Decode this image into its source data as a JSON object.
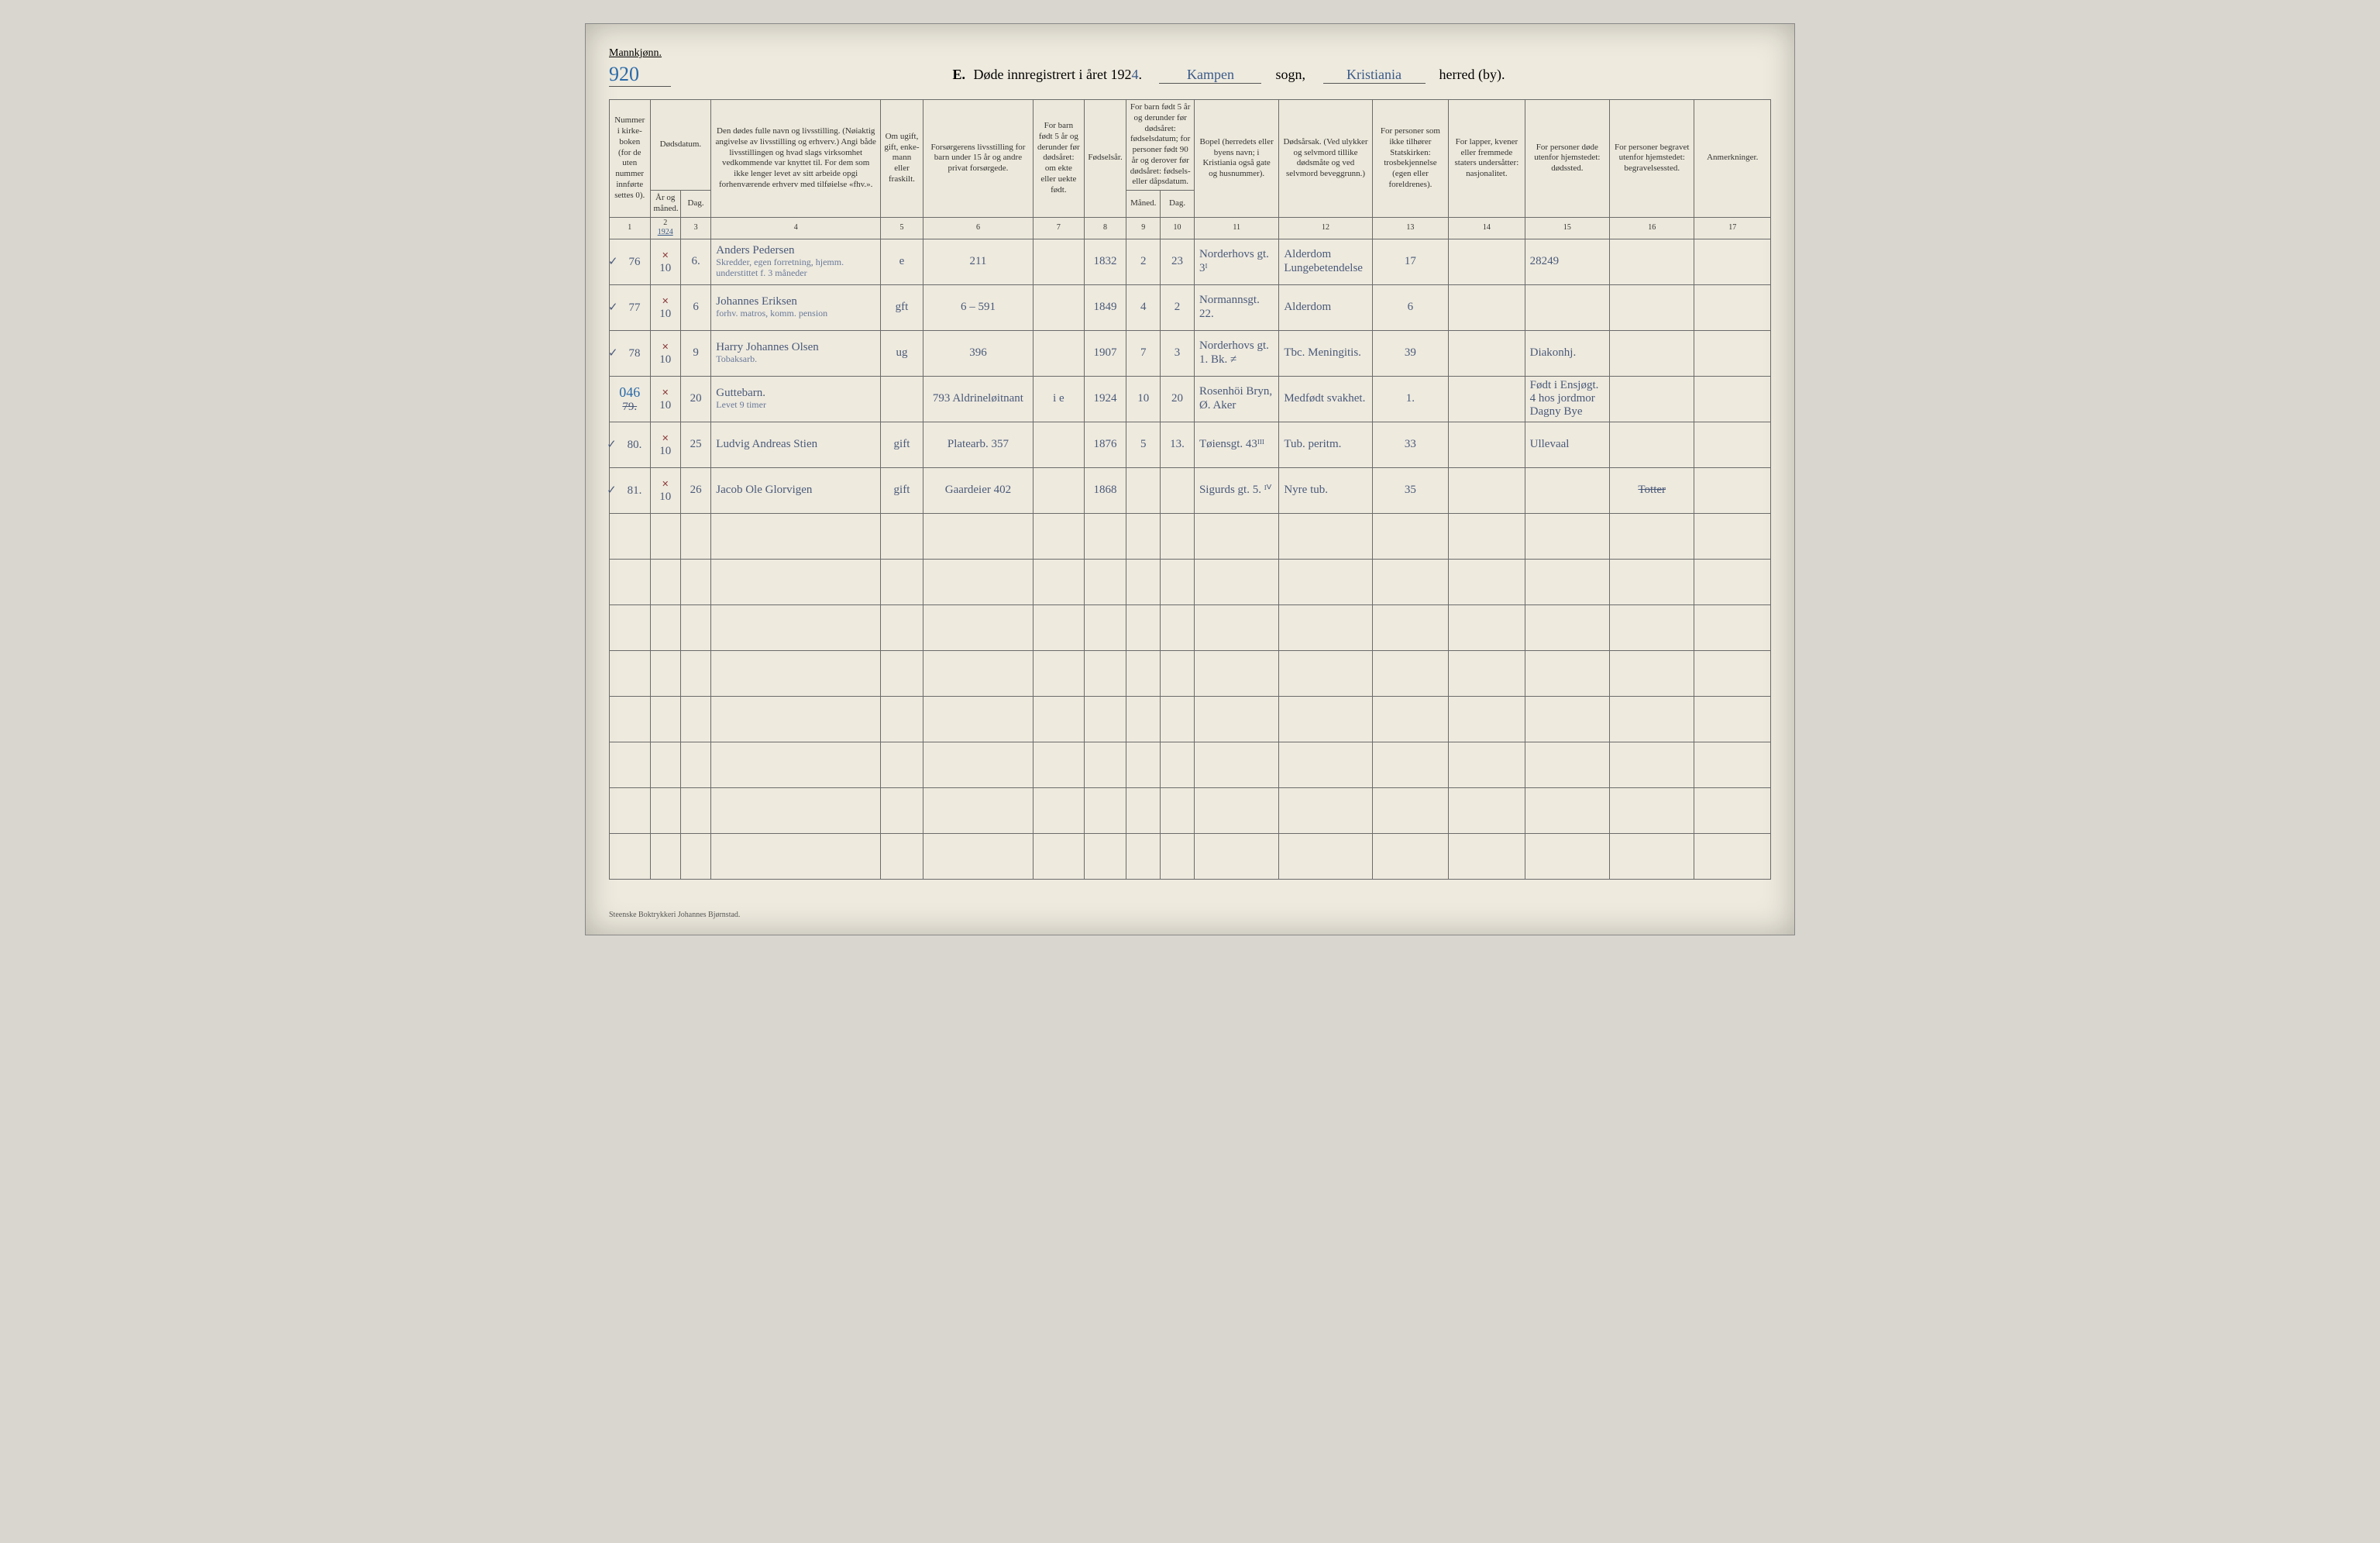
{
  "header": {
    "gender": "Mannkjønn.",
    "page_number": "920",
    "title_letter": "E.",
    "title_text": "Døde innregistrert i året 192",
    "year_suffix": "4",
    "year_sep": ".",
    "parish_label": "sogn,",
    "parish": "Kampen",
    "district_label": "herred (by).",
    "district": "Kristiania"
  },
  "columns": {
    "1": "Nummer i kirke­boken (for de uten nummer innførte settes 0).",
    "2a": "Dødsdatum.",
    "2_sub1": "År og måned.",
    "2_sub2": "Dag.",
    "4": "Den dødes fulle navn og livsstilling. (Nøiaktig angivelse av livsstilling og erhverv.) Angi både livsstillingen og hvad slags virksomhet vedkommende var knyttet til. For dem som ikke lenger levet av sitt arbeide opgi forhenværende erhverv med tilføielse «fhv.».",
    "5": "Om ugift, gift, enke­mann eller fraskilt.",
    "6": "Forsørgerens livsstilling for barn under 15 år og andre privat forsørgede.",
    "7": "For barn født 5 år og derunder før døds­året: om ekte eller uekte født.",
    "8": "Fødsels­år.",
    "910": "For barn født 5 år og der­under før dødsåret: fødselsdatum; for personer født 90 år og derover før dødsåret: fødsels- eller dåpsdatum.",
    "9_sub": "Måned.",
    "10_sub": "Dag.",
    "11": "Bopel (herredets eller byens navn; i Kristiania også gate og husnummer).",
    "12": "Dødsårsak. (Ved ulykker og selv­mord tillike dødsmåte og ved selvmord beveggrunn.)",
    "13": "For personer som ikke tilhører Statskirken: trosbekjennelse (egen eller foreldrenes).",
    "14": "For lapper, kvener eller fremmede staters undersåtter: nasjonalitet.",
    "15": "For personer døde utenfor hjemstedet: dødssted.",
    "16": "For personer begravet utenfor hjemstedet: begravelsessted.",
    "17": "Anmerkninger."
  },
  "colnums": [
    "1",
    "2",
    "3",
    "4",
    "5",
    "6",
    "7",
    "8",
    "9",
    "10",
    "11",
    "12",
    "13",
    "14",
    "15",
    "16",
    "17"
  ],
  "year_in_col2": "1924",
  "rows": [
    {
      "tick": "✓",
      "num": "76",
      "aar_mnd": "10",
      "dag": "6.",
      "name": "Anders Pedersen",
      "name_sub": "Skredder, egen forretning, hjemm. understittet f. 3 måneder",
      "marital": "e",
      "provider": "211",
      "ekte": "",
      "birth_year": "1832",
      "b_month": "2",
      "b_day": "23",
      "residence": "Norderhovs gt. 3ᴵ",
      "cause": "Alderdom Lungebetendelse",
      "col13": "17",
      "col14": "",
      "col15": "28249",
      "col16": "",
      "col17": ""
    },
    {
      "tick": "✓",
      "num": "77",
      "aar_mnd": "10",
      "dag": "6",
      "name": "Johannes Eriksen",
      "name_sub": "forhv. matros, komm. pension",
      "marital": "gft",
      "provider": "6 – 591",
      "ekte": "",
      "birth_year": "1849",
      "b_month": "4",
      "b_day": "2",
      "residence": "Normanns­gt. 22.",
      "cause": "Alderdom",
      "col13": "6",
      "col14": "",
      "col15": "",
      "col16": "",
      "col17": ""
    },
    {
      "tick": "✓",
      "num": "78",
      "aar_mnd": "10",
      "dag": "9",
      "name": "Harry Johannes Olsen",
      "name_sub": "Tobaksarb.",
      "marital": "ug",
      "provider": "396",
      "ekte": "",
      "birth_year": "1907",
      "b_month": "7",
      "b_day": "3",
      "residence": "Norderhovs gt. 1. Bk. ≠",
      "cause": "Tbc. Meningitis.",
      "col13": "39",
      "col14": "",
      "col15": "Diakonhj.",
      "col16": "",
      "col17": ""
    },
    {
      "tick": "",
      "num_strike": "79.",
      "num_over": "046",
      "aar_mnd": "10",
      "dag": "20",
      "name": "Guttebarn.",
      "name_sub": "Levet 9 timer",
      "marital": "",
      "provider": "793  Aldrineløitnant",
      "ekte": "i e",
      "birth_year": "1924",
      "b_month": "10",
      "b_day": "20",
      "residence": "Rosenhöi Bryn, Ø. Aker",
      "cause": "Medfødt svakhet.",
      "col13": "1.",
      "col14": "",
      "col15": "Født i Ensjøgt. 4 hos jordmor Dagny Bye",
      "col16": "",
      "col17": ""
    },
    {
      "tick": "✓",
      "num": "80.",
      "aar_mnd": "10",
      "dag": "25",
      "name": "Ludvig Andreas Stien",
      "name_sub": "",
      "marital": "gift",
      "provider": "Platearb.  357",
      "ekte": "",
      "birth_year": "1876",
      "b_month": "5",
      "b_day": "13.",
      "residence": "Tøiensgt. 43ᴵᴵᴵ",
      "cause": "Tub. peritm.",
      "col13": "33",
      "col14": "",
      "col15": "Ullevaal",
      "col16": "",
      "col17": ""
    },
    {
      "tick": "✓",
      "num": "81.",
      "aar_mnd": "10",
      "dag": "26",
      "name": "Jacob Ole Glorvigen",
      "name_sub": "",
      "marital": "gift",
      "provider": "Gaardeier  402",
      "ekte": "",
      "birth_year": "1868",
      "b_month": "",
      "b_day": "",
      "residence": "Sigurds gt. 5. ᴵⱽ",
      "cause": "Nyre tub.",
      "col13": "35",
      "col14": "",
      "col15": "",
      "col16": "Totter",
      "col16_strike": true,
      "col17": ""
    }
  ],
  "empty_rows": 8,
  "footer": "Steenske Boktrykkeri Johannes Bjørnstad."
}
